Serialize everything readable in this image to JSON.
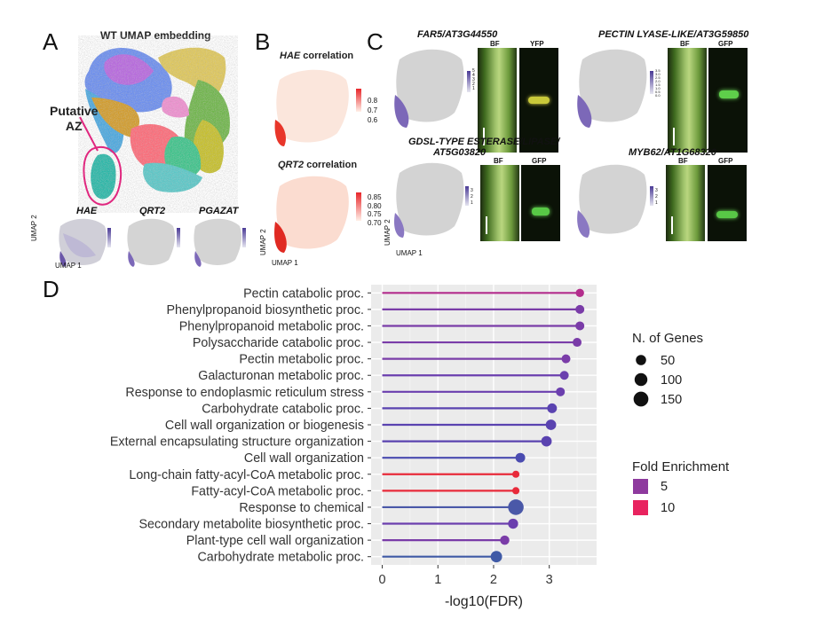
{
  "panels": {
    "a": {
      "letter": "A",
      "title": "WT UMAP embedding",
      "az_label_1": "Putative",
      "az_label_2": "AZ",
      "mini": [
        {
          "gene": "HAE",
          "ticks": [
            "3",
            "2",
            "1"
          ]
        },
        {
          "gene": "QRT2",
          "ticks": [
            "2",
            "1"
          ]
        },
        {
          "gene": "PGAZAT",
          "ticks": [
            "4",
            "3",
            "2",
            "1"
          ]
        }
      ],
      "axis_x": "UMAP 1",
      "axis_y": "UMAP 2"
    },
    "b": {
      "letter": "B",
      "title1_gene": "HAE",
      "title1_rest": " correlation",
      "scale1": [
        "0.8",
        "0.7",
        "0.6"
      ],
      "title2_gene": "QRT2",
      "title2_rest": " correlation",
      "scale2": [
        "0.85",
        "0.80",
        "0.75",
        "0.70"
      ],
      "axis_x": "UMAP 1",
      "axis_y": "UMAP 2"
    },
    "c": {
      "letter": "C",
      "genes": [
        {
          "title": "FAR5/AT3G44550",
          "bf": "BF",
          "fl": "YFP",
          "ticks": [
            "5",
            "4",
            "3",
            "2",
            "1"
          ]
        },
        {
          "title": "PECTIN LYASE-LIKE/AT3G59850",
          "bf": "BF",
          "fl": "GFP",
          "ticks": [
            "3.5",
            "3.0",
            "2.5",
            "2.0",
            "1.5",
            "1.0",
            "0.5",
            "0.0"
          ]
        },
        {
          "title_line1": "GDSL-TYPE ESTERASE/LIPASE/",
          "title_line2": "AT5G03820",
          "bf": "BF",
          "fl": "GFP",
          "ticks": [
            "3",
            "2",
            "1"
          ]
        },
        {
          "title": "MYB62/AT1G68320",
          "bf": "BF",
          "fl": "GFP",
          "ticks": [
            "3",
            "2",
            "1"
          ]
        }
      ],
      "axis_x": "UMAP 1",
      "axis_y": "UMAP 2"
    },
    "d": {
      "letter": "D"
    }
  },
  "chart_data": {
    "type": "lollipop",
    "xlabel": "-log10(FDR)",
    "xlim": [
      -0.2,
      3.85
    ],
    "xticks": [
      0,
      1,
      2,
      3
    ],
    "grid": true,
    "legend_position": "right",
    "size_legend_title": "N. of Genes",
    "size_legend": [
      50,
      100,
      150
    ],
    "color_legend_title": "Fold Enrichment",
    "color_legend": [
      {
        "label": "5",
        "color": "#8e3a9e"
      },
      {
        "label": "10",
        "color": "#e8235f"
      }
    ],
    "categories": [
      "Pectin catabolic proc.",
      "Phenylpropanoid biosynthetic proc.",
      "Phenylpropanoid metabolic proc.",
      "Polysaccharide catabolic proc.",
      "Pectin metabolic proc.",
      "Galacturonan metabolic proc.",
      "Response to endoplasmic reticulum stress",
      "Carbohydrate catabolic proc.",
      "Cell wall organization or biogenesis",
      "External encapsulating structure organization",
      "Cell wall organization",
      "Long-chain fatty-acyl-CoA metabolic proc.",
      "Fatty-acyl-CoA metabolic proc.",
      "Response to chemical",
      "Secondary metabolite biosynthetic proc.",
      "Plant-type cell wall organization",
      "Carbohydrate metabolic proc."
    ],
    "values": [
      3.55,
      3.55,
      3.55,
      3.5,
      3.3,
      3.27,
      3.2,
      3.05,
      3.03,
      2.95,
      2.48,
      2.4,
      2.4,
      2.4,
      2.35,
      2.2,
      2.05
    ],
    "n_genes": [
      20,
      25,
      25,
      25,
      25,
      25,
      25,
      35,
      45,
      45,
      35,
      10,
      10,
      150,
      40,
      30,
      60
    ],
    "colors": [
      "#b32d8c",
      "#7a3ca8",
      "#7a3ca8",
      "#7a3ca8",
      "#7a3ca8",
      "#6b3fae",
      "#6b3fae",
      "#5a43b0",
      "#5a43b0",
      "#5a43b0",
      "#4a4bb0",
      "#e82a3a",
      "#e82a3a",
      "#4a58a8",
      "#6b3fae",
      "#7a3ca8",
      "#3f5aa6"
    ]
  }
}
